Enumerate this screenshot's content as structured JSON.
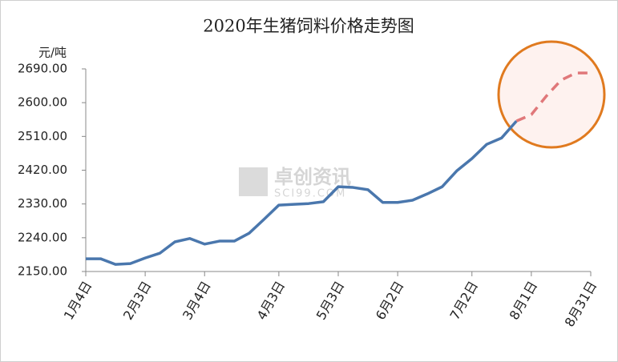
{
  "chart_data": {
    "type": "line",
    "title": "2020年生猪饲料价格走势图",
    "y_label": "元/吨",
    "watermark": "卓创资讯",
    "watermark_sub": "SCI99.COM",
    "categories": [
      "1月4日",
      null,
      null,
      null,
      "2月3日",
      null,
      null,
      null,
      "3月4日",
      null,
      null,
      null,
      null,
      "4月3日",
      null,
      null,
      null,
      "5月3日",
      null,
      null,
      null,
      "6月2日",
      null,
      null,
      null,
      null,
      "7月2日",
      null,
      null,
      null,
      "8月1日",
      null,
      null,
      null,
      "8月31日"
    ],
    "series": [
      {
        "color": "#4a77ad",
        "dashed": false,
        "values": [
          2184,
          2184,
          2169,
          2171,
          2186,
          2199,
          2229,
          2238,
          2223,
          2231,
          2231,
          2252,
          2289,
          2327,
          2329,
          2331,
          2336,
          2376,
          2374,
          2368,
          2334,
          2334,
          2340,
          2357,
          2376,
          2419,
          2451,
          2489,
          2506,
          2551,
          null,
          null,
          null,
          null,
          null
        ]
      },
      {
        "color": "#e0787a",
        "dashed": true,
        "values": [
          null,
          null,
          null,
          null,
          null,
          null,
          null,
          null,
          null,
          null,
          null,
          null,
          null,
          null,
          null,
          null,
          null,
          null,
          null,
          null,
          null,
          null,
          null,
          null,
          null,
          null,
          null,
          null,
          null,
          2551,
          2568,
          2617,
          2660,
          2679,
          2679
        ]
      }
    ],
    "ylim": [
      2150,
      2690
    ],
    "yticks": [
      {
        "value": 2150,
        "label": "2150.00"
      },
      {
        "value": 2240,
        "label": "2240.00"
      },
      {
        "value": 2330,
        "label": "2330.00"
      },
      {
        "value": 2420,
        "label": "2420.00"
      },
      {
        "value": 2510,
        "label": "2510.00"
      },
      {
        "value": 2600,
        "label": "2600.00"
      },
      {
        "value": 2690,
        "label": "2690.00"
      }
    ],
    "grid": false
  }
}
